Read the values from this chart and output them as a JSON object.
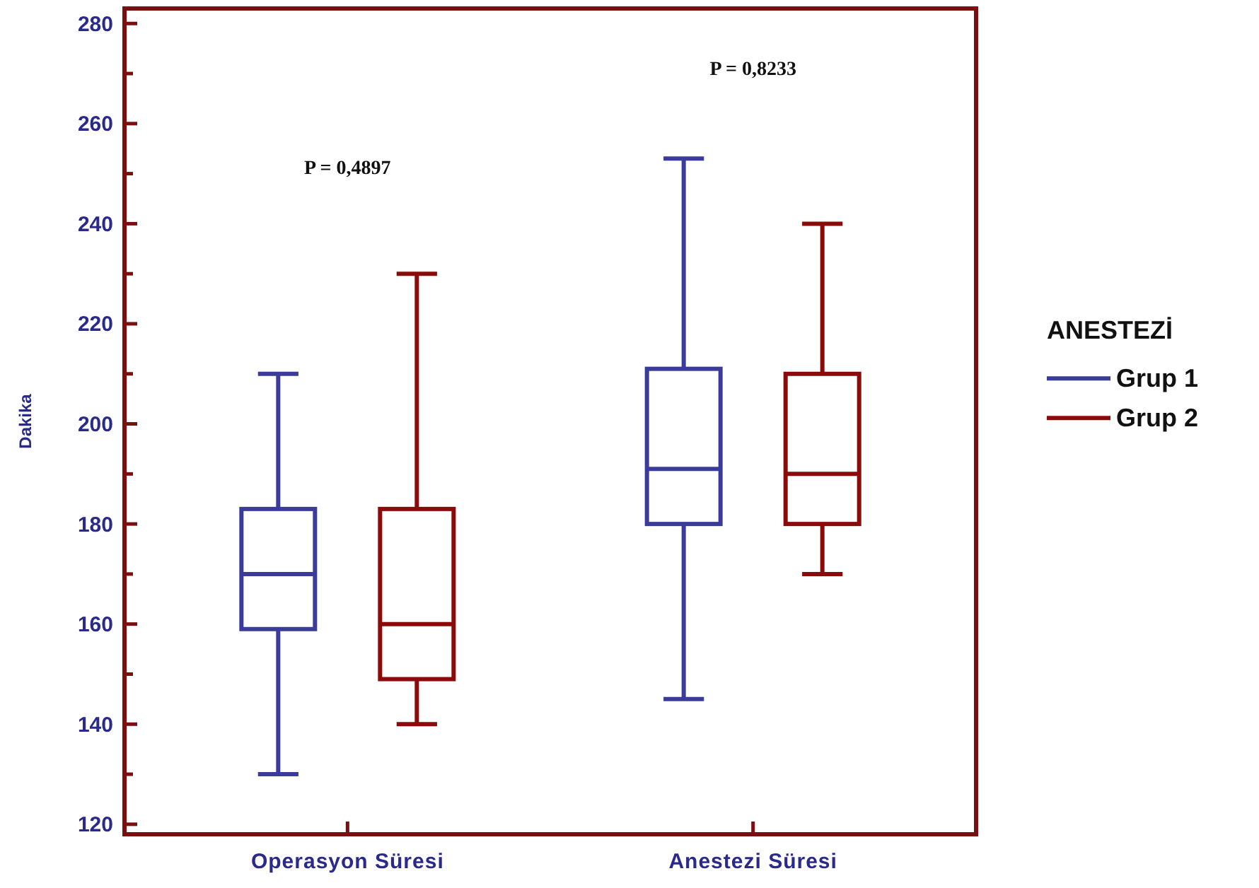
{
  "chart_data": {
    "type": "box",
    "ylabel": "Dakika",
    "legend_title": "ANESTEZİ",
    "legend": "right",
    "grid": false,
    "categories": [
      "Operasyon Süresi",
      "Anestezi Süresi"
    ],
    "ylim": [
      118,
      283
    ],
    "yticks": [
      120,
      {
        "value": 130,
        "label": null
      },
      140,
      {
        "value": 150,
        "label": null
      },
      160,
      {
        "value": 170,
        "label": null
      },
      180,
      {
        "value": 190,
        "label": null
      },
      200,
      {
        "value": 210,
        "label": null
      },
      220,
      {
        "value": 230,
        "label": null
      },
      240,
      {
        "value": 250,
        "label": null
      },
      260,
      {
        "value": 270,
        "label": null
      },
      280
    ],
    "series": [
      {
        "name": "Grup 1",
        "color": "#3b3b9c",
        "boxes": [
          {
            "low": 130,
            "q1": 159,
            "median": 170,
            "q3": 183,
            "high": 210
          },
          {
            "low": 145,
            "q1": 180,
            "median": 191,
            "q3": 211,
            "high": 253
          }
        ]
      },
      {
        "name": "Grup 2",
        "color": "#8b0a0a",
        "boxes": [
          {
            "low": 140,
            "q1": 149,
            "median": 160,
            "q3": 183,
            "high": 230
          },
          {
            "low": 170,
            "q1": 180,
            "median": 190,
            "q3": 210,
            "high": 240
          }
        ]
      }
    ],
    "annotations": [
      "P = 0,4897",
      "P = 0,8233"
    ]
  }
}
